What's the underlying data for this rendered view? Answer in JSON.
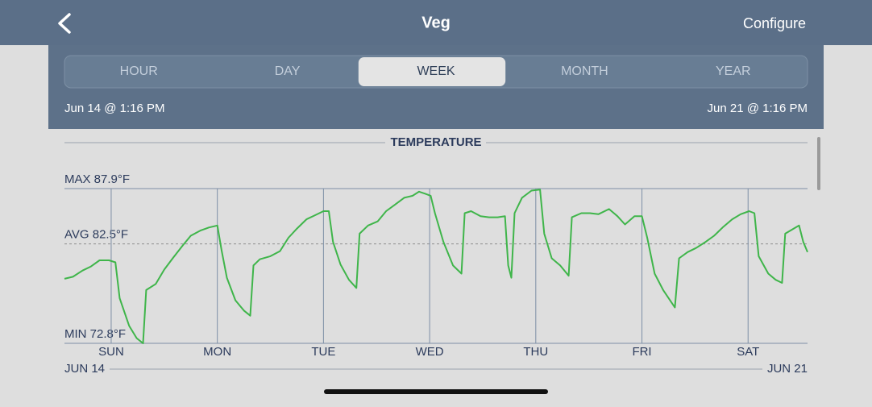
{
  "header": {
    "title": "Veg",
    "action": "Configure"
  },
  "tabs": {
    "items": [
      "HOUR",
      "DAY",
      "WEEK",
      "MONTH",
      "YEAR"
    ],
    "selected": 2
  },
  "range": {
    "start": "Jun 14 @ 1:16 PM",
    "end": "Jun 21 @ 1:16 PM"
  },
  "chart_data": {
    "type": "line",
    "title": "TEMPERATURE",
    "color": "#3fb54a",
    "x": [
      0,
      0.08,
      0.17,
      0.25,
      0.33,
      0.42,
      0.48,
      0.52,
      0.61,
      0.68,
      0.74,
      0.77,
      0.86,
      0.94,
      1.02,
      1.11,
      1.19,
      1.28,
      1.36,
      1.44,
      1.48,
      1.53,
      1.61,
      1.69,
      1.75,
      1.78,
      1.84,
      1.94,
      2.03,
      2.11,
      2.19,
      2.28,
      2.36,
      2.44,
      2.49,
      2.53,
      2.6,
      2.68,
      2.75,
      2.78,
      2.86,
      2.95,
      3.03,
      3.11,
      3.2,
      3.28,
      3.34,
      3.4,
      3.45,
      3.49,
      3.57,
      3.66,
      3.74,
      3.77,
      3.83,
      3.92,
      4.0,
      4.08,
      4.15,
      4.18,
      4.21,
      4.24,
      4.31,
      4.4,
      4.48,
      4.52,
      4.59,
      4.67,
      4.75,
      4.78,
      4.87,
      4.95,
      5.03,
      5.13,
      5.21,
      5.28,
      5.37,
      5.44,
      5.49,
      5.56,
      5.64,
      5.75,
      5.79,
      5.87,
      5.95,
      6.04,
      6.12,
      6.2,
      6.29,
      6.37,
      6.45,
      6.5,
      6.54,
      6.63,
      6.7,
      6.76,
      6.79,
      6.87,
      6.92,
      6.96,
      7.0
    ],
    "values": [
      79.1,
      79.3,
      79.9,
      80.3,
      80.9,
      80.9,
      80.7,
      77.2,
      74.5,
      73.3,
      72.8,
      78.0,
      78.6,
      80.0,
      81.1,
      82.3,
      83.3,
      83.8,
      84.1,
      84.3,
      81.9,
      79.2,
      77.0,
      76.0,
      75.5,
      80.4,
      81.0,
      81.3,
      81.8,
      83.1,
      84.0,
      84.9,
      85.3,
      85.7,
      85.7,
      82.7,
      80.5,
      79.0,
      78.2,
      83.5,
      84.3,
      84.7,
      85.7,
      86.3,
      87.0,
      87.2,
      87.6,
      87.4,
      87.2,
      85.5,
      82.7,
      80.4,
      79.6,
      85.5,
      85.7,
      85.2,
      85.1,
      85.1,
      85.2,
      80.4,
      79.2,
      85.5,
      87.0,
      87.7,
      87.8,
      83.5,
      81.1,
      80.4,
      79.4,
      85.1,
      85.5,
      85.5,
      85.4,
      85.9,
      85.2,
      84.4,
      85.2,
      85.2,
      83.1,
      79.6,
      78.0,
      76.3,
      81.1,
      81.7,
      82.1,
      82.7,
      83.3,
      84.1,
      84.9,
      85.4,
      85.7,
      85.5,
      81.3,
      79.6,
      79.0,
      78.7,
      83.5,
      84.0,
      84.3,
      82.7,
      81.7
    ],
    "xlim": [
      0,
      7
    ],
    "xticks": [
      {
        "value": 0.44,
        "label": "SUN"
      },
      {
        "value": 1.44,
        "label": "MON"
      },
      {
        "value": 2.44,
        "label": "TUE"
      },
      {
        "value": 3.44,
        "label": "WED"
      },
      {
        "value": 4.44,
        "label": "THU"
      },
      {
        "value": 5.44,
        "label": "FRI"
      },
      {
        "value": 6.44,
        "label": "SAT"
      }
    ],
    "x_start_label": "JUN 14",
    "x_end_label": "JUN 21",
    "ylim": [
      72.8,
      87.9
    ],
    "yticks": [
      {
        "value": 72.8,
        "label": "MIN 72.8°F"
      },
      {
        "value": 82.5,
        "label": "AVG 82.5°F"
      },
      {
        "value": 87.9,
        "label": "MAX 87.9°F"
      }
    ]
  }
}
